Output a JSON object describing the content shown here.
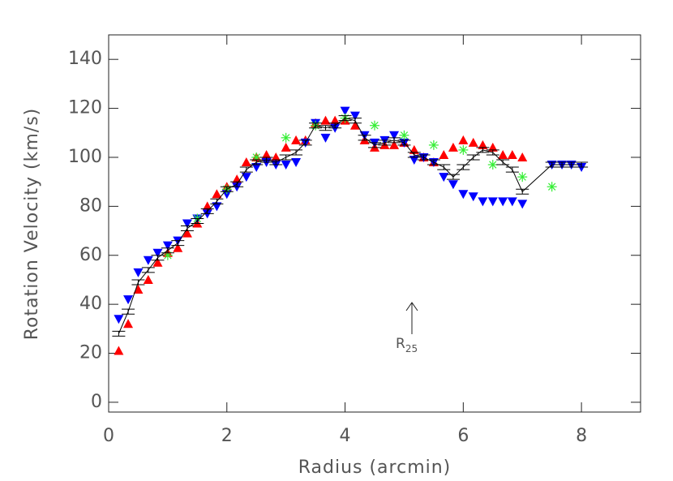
{
  "chart_data": {
    "type": "scatter",
    "xlabel": "Radius (arcmin)",
    "ylabel": "Rotation Velocity (km/s)",
    "annotation": {
      "text": "R",
      "subscript": "25"
    },
    "xlim": [
      0,
      9
    ],
    "ylim": [
      -4,
      150
    ],
    "xticks": [
      0,
      2,
      4,
      6,
      8
    ],
    "yticks": [
      0,
      20,
      40,
      60,
      80,
      100,
      120,
      140
    ],
    "series": [
      {
        "marker": "triangle-up",
        "color": "#ff0000",
        "x": [
          0.17,
          0.33,
          0.5,
          0.67,
          0.83,
          1.0,
          1.17,
          1.33,
          1.5,
          1.67,
          1.83,
          2.0,
          2.17,
          2.33,
          2.5,
          2.67,
          2.83,
          3.0,
          3.17,
          3.33,
          3.5,
          3.67,
          3.83,
          4.0,
          4.17,
          4.33,
          4.5,
          4.67,
          4.83,
          5.0,
          5.17,
          5.33,
          5.5,
          5.67,
          5.83,
          6.0,
          6.17,
          6.33,
          6.5,
          6.67,
          6.83,
          7.0
        ],
        "values": [
          21,
          32,
          46,
          50,
          57,
          61,
          63,
          69,
          73,
          80,
          85,
          88,
          91,
          98,
          100,
          101,
          100,
          104,
          107,
          107,
          114,
          115,
          115,
          115,
          113,
          107,
          104,
          105,
          105,
          106,
          103,
          100,
          98,
          101,
          104,
          107,
          106,
          105,
          104,
          101,
          101,
          100
        ]
      },
      {
        "marker": "triangle-down",
        "color": "#0000ff",
        "x": [
          0.17,
          0.33,
          0.5,
          0.67,
          0.83,
          1.0,
          1.17,
          1.33,
          1.5,
          1.67,
          1.83,
          2.0,
          2.17,
          2.33,
          2.5,
          2.67,
          2.83,
          3.0,
          3.17,
          3.33,
          3.5,
          3.67,
          3.83,
          4.0,
          4.17,
          4.33,
          4.5,
          4.67,
          4.83,
          5.0,
          5.17,
          5.33,
          5.5,
          5.67,
          5.83,
          6.0,
          6.17,
          6.33,
          6.5,
          6.67,
          6.83,
          7.0,
          7.5,
          7.67,
          7.83,
          8.0
        ],
        "values": [
          34,
          42,
          53,
          58,
          61,
          64,
          66,
          73,
          75,
          77,
          80,
          85,
          88,
          92,
          96,
          98,
          97,
          97,
          98,
          106,
          114,
          108,
          112,
          119,
          117,
          109,
          106,
          107,
          109,
          106,
          99,
          100,
          98,
          92,
          89,
          85,
          84,
          82,
          82,
          82,
          82,
          81,
          97,
          97,
          97,
          96
        ]
      },
      {
        "marker": "asterisk",
        "color": "#33ee33",
        "x": [
          1.0,
          1.5,
          2.0,
          2.5,
          3.0,
          3.5,
          4.0,
          4.5,
          5.0,
          5.5,
          6.0,
          6.5,
          7.0,
          7.5
        ],
        "values": [
          60,
          75,
          87,
          100,
          108,
          113,
          116,
          113,
          109,
          105,
          103,
          97,
          92,
          88
        ]
      },
      {
        "marker": "line",
        "color": "#000000",
        "x": [
          0.17,
          0.33,
          0.5,
          0.67,
          0.83,
          1.0,
          1.17,
          1.33,
          1.5,
          1.67,
          1.83,
          2.0,
          2.17,
          2.33,
          2.5,
          2.67,
          2.83,
          3.0,
          3.17,
          3.33,
          3.5,
          3.67,
          3.83,
          4.0,
          4.17,
          4.33,
          4.5,
          4.67,
          4.83,
          5.0,
          5.17,
          5.33,
          5.5,
          5.67,
          5.83,
          6.0,
          6.17,
          6.33,
          6.5,
          6.67,
          6.83,
          7.0,
          7.5,
          7.67,
          7.83,
          8.0
        ],
        "values": [
          28,
          37,
          49,
          54,
          59,
          62,
          65,
          71,
          74,
          78,
          82,
          87,
          89,
          95,
          98,
          99,
          98,
          100,
          102,
          106,
          113,
          112,
          113,
          116,
          115,
          108,
          105,
          106,
          107,
          106,
          101,
          100,
          98,
          96,
          92,
          96,
          100,
          103,
          102,
          98,
          95,
          86,
          97,
          97,
          97,
          97
        ],
        "errors": [
          1,
          1,
          1,
          1,
          1,
          1,
          1,
          1,
          1,
          1,
          1,
          1,
          1,
          1,
          1,
          1,
          1,
          1,
          1,
          1,
          1,
          1,
          1,
          1,
          1,
          1,
          1,
          1,
          1,
          1,
          1,
          1,
          1,
          1,
          1,
          1,
          1,
          1,
          1,
          1,
          1,
          1,
          1,
          1,
          1,
          1
        ]
      }
    ]
  }
}
